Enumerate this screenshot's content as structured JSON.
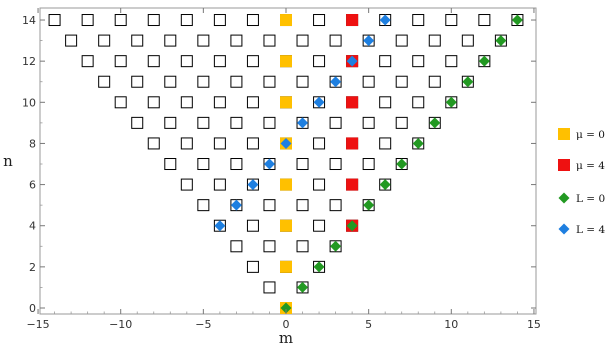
{
  "chart_data": {
    "type": "scatter",
    "xlabel": "m",
    "ylabel": "n",
    "xlim": [
      -15,
      15
    ],
    "ylim": [
      0,
      14.5
    ],
    "xticks": [
      -15,
      -10,
      -5,
      0,
      5,
      10,
      15
    ],
    "yticks": [
      0,
      2,
      4,
      6,
      8,
      10,
      12,
      14
    ],
    "grid": false,
    "legend_position": "right",
    "lattice": {
      "description_rule": "open squares at all (m, n) with |m| <= n and n - |m| even",
      "n_max": 14
    },
    "series": [
      {
        "name": "μ = 0",
        "marker": "square",
        "color": "#FFC000",
        "points": [
          [
            0,
            0
          ],
          [
            0,
            2
          ],
          [
            0,
            4
          ],
          [
            0,
            6
          ],
          [
            0,
            8
          ],
          [
            0,
            10
          ],
          [
            0,
            12
          ],
          [
            0,
            14
          ]
        ]
      },
      {
        "name": "μ = 4",
        "marker": "square",
        "color": "#EE1111",
        "points": [
          [
            4,
            4
          ],
          [
            4,
            6
          ],
          [
            4,
            8
          ],
          [
            4,
            10
          ],
          [
            4,
            12
          ],
          [
            4,
            14
          ]
        ]
      },
      {
        "name": "L = 0",
        "marker": "diamond",
        "color": "#229922",
        "points": [
          [
            0,
            0
          ],
          [
            1,
            1
          ],
          [
            2,
            2
          ],
          [
            3,
            3
          ],
          [
            4,
            4
          ],
          [
            5,
            5
          ],
          [
            6,
            6
          ],
          [
            7,
            7
          ],
          [
            8,
            8
          ],
          [
            9,
            9
          ],
          [
            10,
            10
          ],
          [
            11,
            11
          ],
          [
            12,
            12
          ],
          [
            13,
            13
          ],
          [
            14,
            14
          ]
        ]
      },
      {
        "name": "L = 4",
        "marker": "diamond",
        "color": "#1E7FE0",
        "points": [
          [
            -4,
            4
          ],
          [
            -3,
            5
          ],
          [
            -2,
            6
          ],
          [
            -1,
            7
          ],
          [
            0,
            8
          ],
          [
            1,
            9
          ],
          [
            2,
            10
          ],
          [
            3,
            11
          ],
          [
            4,
            12
          ],
          [
            5,
            13
          ],
          [
            6,
            14
          ]
        ]
      }
    ]
  },
  "legend": [
    {
      "label": "μ = 0",
      "marker": "square",
      "color": "#FFC000"
    },
    {
      "label": "μ = 4",
      "marker": "square",
      "color": "#EE1111"
    },
    {
      "label": "L = 0",
      "marker": "diamond",
      "color": "#229922"
    },
    {
      "label": "L = 4",
      "marker": "diamond",
      "color": "#1E7FE0"
    }
  ]
}
